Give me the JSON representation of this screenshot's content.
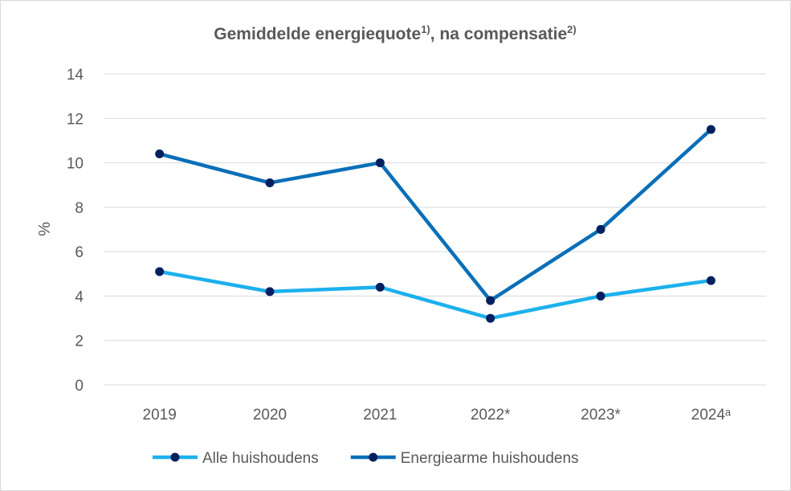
{
  "chart_data": {
    "type": "line",
    "title": "Gemiddelde energiequote",
    "title_note_1": "1)",
    "title_mid": ", na compensatie",
    "title_note_2": "2)",
    "xlabel": "",
    "ylabel": "%",
    "ylim": [
      0,
      14
    ],
    "yticks": [
      0,
      2,
      4,
      6,
      8,
      10,
      12,
      14
    ],
    "categories": [
      "2019",
      "2020",
      "2021",
      "2022*",
      "2023*",
      "2024ᵃ"
    ],
    "grid": true,
    "legend_position": "bottom",
    "series": [
      {
        "name": "Alle huishoudens",
        "values": [
          5.1,
          4.2,
          4.4,
          3.0,
          4.0,
          4.7
        ],
        "line_color": "#1cb1ed",
        "marker_color": "#002060"
      },
      {
        "name": "Energiearme huishoudens",
        "values": [
          10.4,
          9.1,
          10.0,
          3.8,
          7.0,
          11.5
        ],
        "line_color": "#0a6fb8",
        "marker_color": "#002060"
      }
    ]
  }
}
